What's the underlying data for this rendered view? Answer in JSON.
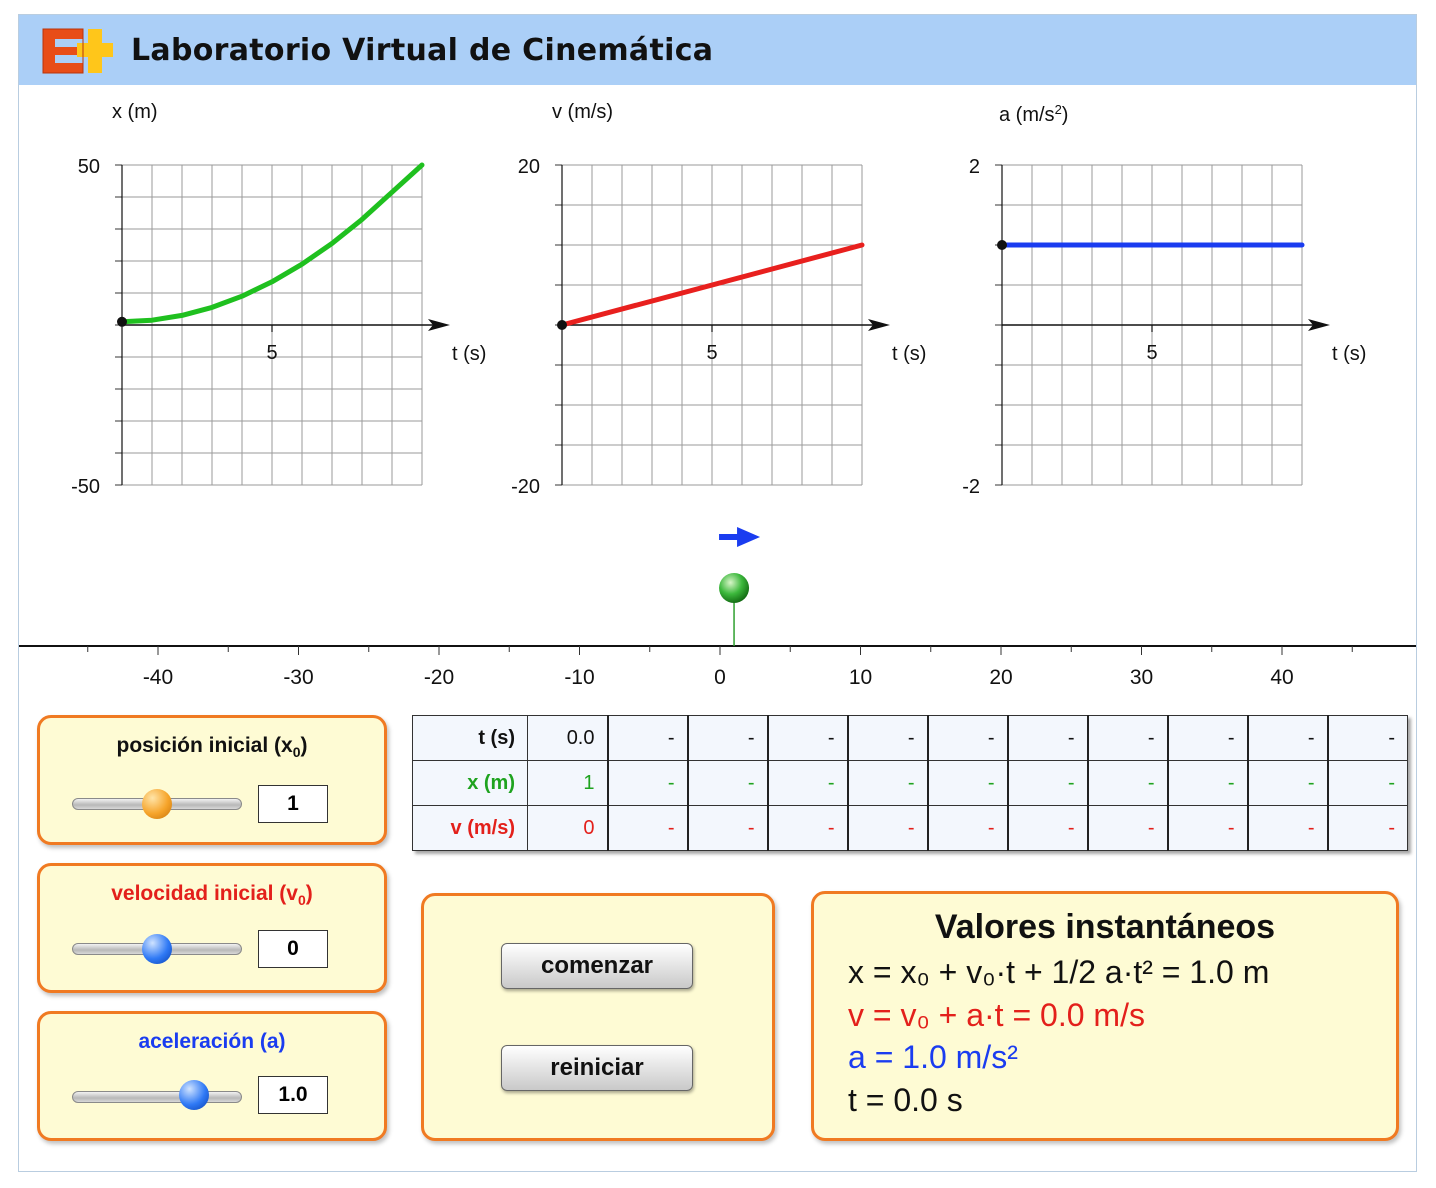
{
  "app": {
    "title": "Laboratorio Virtual de Cinemática"
  },
  "colors": {
    "position": "#1fc01f",
    "velocity": "#e8201e",
    "acceleration": "#1a3cf0",
    "panel_bg": "#fefbd4",
    "panel_border": "#f07a22",
    "header_bg": "#abcff7"
  },
  "icons": {
    "logo": "e-plus-logo",
    "direction": "arrow-right-icon",
    "particle": "green-ball-icon"
  },
  "graphs": [
    {
      "ylabel": "x (m)",
      "xlabel": "t (s)",
      "ymax_label": "50",
      "ymin_label": "-50",
      "xtick_label": "5"
    },
    {
      "ylabel": "v (m/s)",
      "xlabel": "t (s)",
      "ymax_label": "20",
      "ymin_label": "-20",
      "xtick_label": "5"
    },
    {
      "ylabel": "a (m/s",
      "ylabel_sup": "2",
      "ylabel_close": ")",
      "xlabel": "t (s)",
      "ymax_label": "2",
      "ymin_label": "-2",
      "xtick_label": "5"
    }
  ],
  "chart_data": [
    {
      "type": "line",
      "x": [
        0,
        1,
        2,
        3,
        4,
        5,
        6,
        7,
        8,
        9,
        10
      ],
      "series": [
        {
          "values": [
            1,
            1.5,
            3,
            5.5,
            9,
            13.5,
            19,
            25.5,
            33,
            41.5,
            51
          ]
        }
      ],
      "xlim": [
        0,
        10
      ],
      "ylim": [
        -50,
        50
      ],
      "xlabel": "t (s)",
      "ylabel": "x (m)"
    },
    {
      "type": "line",
      "x": [
        0,
        10
      ],
      "series": [
        {
          "values": [
            0,
            10
          ]
        }
      ],
      "xlim": [
        0,
        10
      ],
      "ylim": [
        -20,
        20
      ],
      "xlabel": "t (s)",
      "ylabel": "v (m/s)"
    },
    {
      "type": "line",
      "x": [
        0,
        10
      ],
      "series": [
        {
          "values": [
            1,
            1
          ]
        }
      ],
      "xlim": [
        0,
        10
      ],
      "ylim": [
        -2,
        2
      ],
      "xlabel": "t (s)",
      "ylabel": "a (m/s²)"
    }
  ],
  "track": {
    "ticks": [
      "-40",
      "-30",
      "-20",
      "-10",
      "0",
      "10",
      "20",
      "30",
      "40"
    ],
    "particle_position": 1,
    "velocity_direction": "right"
  },
  "controls": {
    "x0": {
      "label": "posición inicial (x",
      "label_sub": "0",
      "label_close": ")",
      "value": "1",
      "slider_fraction": 0.5
    },
    "v0": {
      "label": "velocidad inicial (v",
      "label_sub": "0",
      "label_close": ")",
      "value": "0",
      "slider_fraction": 0.5
    },
    "a": {
      "label": "aceleración (a)",
      "value": "1.0",
      "slider_fraction": 0.75
    }
  },
  "table": {
    "rows": [
      {
        "header": "t (s)",
        "cells": [
          "0.0",
          "-",
          "-",
          "-",
          "-",
          "-",
          "-",
          "-",
          "-",
          "-",
          "-"
        ]
      },
      {
        "header": "x (m)",
        "cells": [
          "1",
          "-",
          "-",
          "-",
          "-",
          "-",
          "-",
          "-",
          "-",
          "-",
          "-"
        ]
      },
      {
        "header": "v (m/s)",
        "cells": [
          "0",
          "-",
          "-",
          "-",
          "-",
          "-",
          "-",
          "-",
          "-",
          "-",
          "-"
        ]
      }
    ]
  },
  "buttons": {
    "start": "comenzar",
    "reset": "reiniciar"
  },
  "values": {
    "title": "Valores instantáneos",
    "x_eq": "x = x₀ + v₀·t + 1/2 a·t² = 1.0 m",
    "v_eq": "v = v₀ + a·t = 0.0 m/s",
    "a_eq": "a = 1.0 m/s²",
    "t_eq": "t = 0.0 s"
  }
}
